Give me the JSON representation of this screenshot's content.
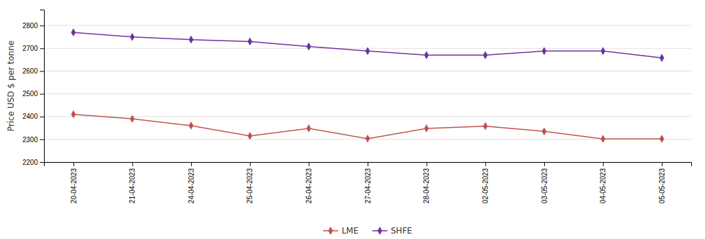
{
  "chart_data": {
    "type": "line",
    "ylabel": "Price USD $ per tonne",
    "categories": [
      "20-04-2023",
      "21-04-2023",
      "24-04-2023",
      "25-04-2023",
      "26-04-2023",
      "27-04-2023",
      "28-04-2023",
      "02-05-2023",
      "03-05-2023",
      "04-05-2023",
      "05-05-2023"
    ],
    "series": [
      {
        "name": "LME",
        "color": "#c0504d",
        "marker": "diamond",
        "values": [
          2410,
          2390,
          2360,
          2315,
          2348,
          2303,
          2348,
          2358,
          2335,
          2302,
          2302
        ]
      },
      {
        "name": "SHFE",
        "color": "#7030a0",
        "marker": "diamond",
        "values": [
          2770,
          2750,
          2738,
          2730,
          2708,
          2688,
          2670,
          2670,
          2688,
          2688,
          2658
        ]
      }
    ],
    "ylim": [
      2200,
      2870
    ],
    "yticks": [
      2200,
      2300,
      2400,
      2500,
      2600,
      2700,
      2800
    ],
    "grid": true,
    "legend": "bottom"
  }
}
